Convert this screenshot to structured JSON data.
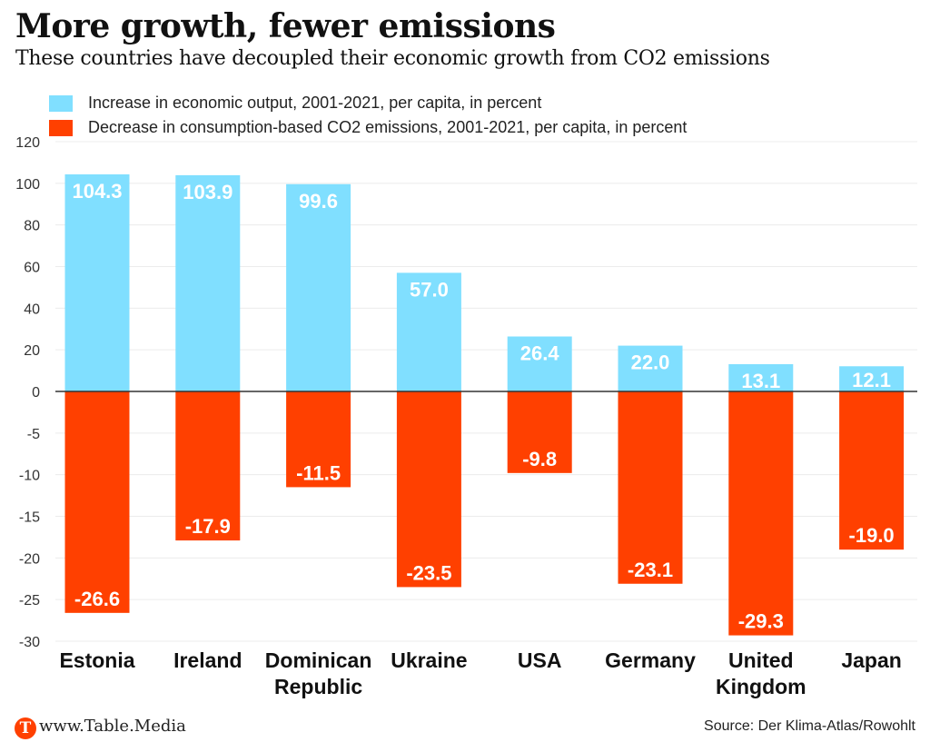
{
  "header": {
    "title": "More growth, fewer emissions",
    "subtitle": "These countries have decoupled their economic growth from CO2 emissions"
  },
  "footer": {
    "logo_letter": "T",
    "url": "www.Table.Media",
    "source": "Source: Der Klima-Atlas/Rowohlt"
  },
  "colors": {
    "growth": "#80dfff",
    "emissions": "#ff4000",
    "logo": "#ff4000"
  },
  "chart_data": {
    "type": "bar",
    "title": "More growth, fewer emissions",
    "subtitle": "These countries have decoupled their economic growth from CO2 emissions",
    "xlabel": "",
    "ylabel": "",
    "categories": [
      [
        "Estonia"
      ],
      [
        "Ireland"
      ],
      [
        "Dominican",
        "Republic"
      ],
      [
        "Ukraine"
      ],
      [
        "USA"
      ],
      [
        "Germany"
      ],
      [
        "United",
        "Kingdom"
      ],
      [
        "Japan"
      ]
    ],
    "series": [
      {
        "name": "Increase in economic output, 2001-2021, per capita, in percent",
        "color": "#80dfff",
        "values": [
          104.3,
          103.9,
          99.6,
          57.0,
          26.4,
          22.0,
          13.1,
          12.1
        ],
        "labels": [
          "104.3",
          "103.9",
          "99.6",
          "57.0",
          "26.4",
          "22.0",
          "13.1",
          "12.1"
        ]
      },
      {
        "name": "Decrease in consumption-based CO2 emissions, 2001-2021, per capita, in percent",
        "color": "#ff4000",
        "values": [
          -26.6,
          -17.9,
          -11.5,
          -23.5,
          -9.8,
          -23.1,
          -29.3,
          -19.0
        ],
        "labels": [
          "-26.6",
          "-17.9",
          "-11.5",
          "-23.5",
          "-9.8",
          "-23.1",
          "-29.3",
          "-19.0"
        ]
      }
    ],
    "y_axis": {
      "positive_range": [
        0,
        120
      ],
      "negative_range": [
        -30,
        0
      ],
      "positive_ticks": [
        120,
        100,
        80,
        60,
        40,
        20,
        0
      ],
      "negative_ticks": [
        -5,
        -10,
        -15,
        -20,
        -25,
        -30
      ],
      "note": "split scale: positive side and negative side use different scales"
    },
    "grid": true,
    "legend_position": "top-left"
  }
}
